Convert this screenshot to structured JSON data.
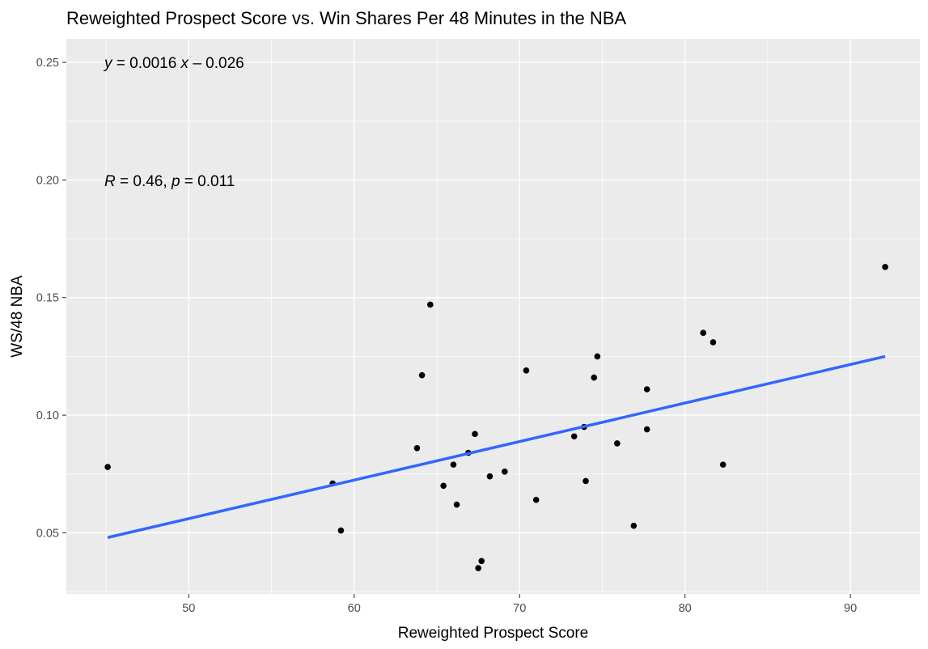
{
  "chart_data": {
    "type": "scatter",
    "title": "Reweighted Prospect Score vs. Win Shares Per 48 Minutes in the NBA",
    "xlabel": "Reweighted Prospect Score",
    "ylabel": "WS/48 NBA",
    "xlim": [
      42.6,
      94.2
    ],
    "ylim": [
      0.024,
      0.26
    ],
    "x_ticks": [
      50,
      60,
      70,
      80,
      90
    ],
    "y_ticks": [
      0.05,
      0.1,
      0.15,
      0.2,
      0.25
    ],
    "x_tick_labels": [
      "50",
      "60",
      "70",
      "80",
      "90"
    ],
    "y_tick_labels": [
      "0.05",
      "0.10",
      "0.15",
      "0.20",
      "0.25"
    ],
    "grid": true,
    "points": [
      {
        "x": 45.1,
        "y": 0.078
      },
      {
        "x": 58.7,
        "y": 0.071
      },
      {
        "x": 59.2,
        "y": 0.051
      },
      {
        "x": 63.8,
        "y": 0.086
      },
      {
        "x": 64.1,
        "y": 0.117
      },
      {
        "x": 64.6,
        "y": 0.147
      },
      {
        "x": 65.4,
        "y": 0.07
      },
      {
        "x": 66.0,
        "y": 0.079
      },
      {
        "x": 66.2,
        "y": 0.062
      },
      {
        "x": 66.9,
        "y": 0.084
      },
      {
        "x": 67.3,
        "y": 0.092
      },
      {
        "x": 67.5,
        "y": 0.035
      },
      {
        "x": 67.7,
        "y": 0.038
      },
      {
        "x": 68.2,
        "y": 0.074
      },
      {
        "x": 69.1,
        "y": 0.076
      },
      {
        "x": 70.4,
        "y": 0.119
      },
      {
        "x": 71.0,
        "y": 0.064
      },
      {
        "x": 73.3,
        "y": 0.091
      },
      {
        "x": 73.9,
        "y": 0.095
      },
      {
        "x": 74.0,
        "y": 0.072
      },
      {
        "x": 74.5,
        "y": 0.116
      },
      {
        "x": 74.7,
        "y": 0.125
      },
      {
        "x": 75.9,
        "y": 0.088
      },
      {
        "x": 76.9,
        "y": 0.053
      },
      {
        "x": 77.7,
        "y": 0.111
      },
      {
        "x": 77.7,
        "y": 0.094
      },
      {
        "x": 81.1,
        "y": 0.135
      },
      {
        "x": 81.7,
        "y": 0.131
      },
      {
        "x": 82.3,
        "y": 0.079
      },
      {
        "x": 92.1,
        "y": 0.163
      }
    ],
    "regression_line": {
      "x": [
        45.1,
        92.1
      ],
      "y": [
        0.048,
        0.125
      ],
      "color": "#3366ff"
    },
    "annotations": {
      "equation": {
        "y_label": "y",
        "x_label": "x",
        "equals": " = 0.0016 ",
        "rest": " – 0.026"
      },
      "stats": {
        "r_label": "R",
        "r_value": " = 0.46, ",
        "p_label": "p",
        "p_value": " = 0.011"
      }
    },
    "colors": {
      "panel": "#ebebeb",
      "grid": "#ffffff",
      "point": "#000000",
      "line": "#3366ff"
    }
  }
}
